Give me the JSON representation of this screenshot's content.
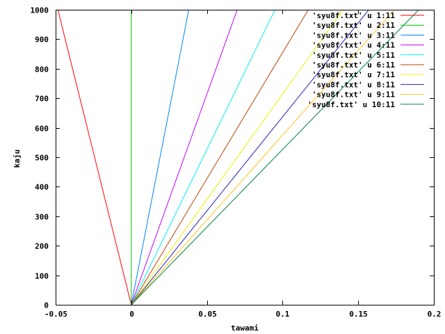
{
  "chart_data": {
    "type": "line",
    "title": "",
    "xlabel": "tawami",
    "ylabel": "kaju",
    "xlim": [
      -0.05,
      0.2
    ],
    "ylim": [
      0,
      1000
    ],
    "xticks": [
      -0.05,
      0,
      0.05,
      0.1,
      0.15,
      0.2
    ],
    "xtick_labels": [
      "-0.05",
      "0",
      "0.05",
      "0.1",
      "0.15",
      "0.2"
    ],
    "yticks": [
      0,
      100,
      200,
      300,
      400,
      500,
      600,
      700,
      800,
      900,
      1000
    ],
    "ytick_labels": [
      "0",
      "100",
      "200",
      "300",
      "400",
      "500",
      "600",
      "700",
      "800",
      "900",
      "1000"
    ],
    "grid": false,
    "legend_position": "top-right",
    "series": [
      {
        "name": "'syu8f.txt' u 1:11",
        "color": "#ff0000",
        "x": [
          0,
          -0.0485
        ],
        "y": [
          0,
          1000
        ]
      },
      {
        "name": "'syu8f.txt' u 2:11",
        "color": "#00c000",
        "x": [
          0,
          0
        ],
        "y": [
          0,
          1000
        ]
      },
      {
        "name": "'syu8f.txt' u 3:11",
        "color": "#0080ff",
        "x": [
          0,
          0.038
        ],
        "y": [
          0,
          1000
        ]
      },
      {
        "name": "'syu8f.txt' u 4:11",
        "color": "#c000ff",
        "x": [
          0,
          0.07
        ],
        "y": [
          0,
          1000
        ]
      },
      {
        "name": "'syu8f.txt' u 5:11",
        "color": "#00eeee",
        "x": [
          0,
          0.095
        ],
        "y": [
          0,
          1000
        ]
      },
      {
        "name": "'syu8f.txt' u 6:11",
        "color": "#c04000",
        "x": [
          0,
          0.117
        ],
        "y": [
          0,
          1000
        ]
      },
      {
        "name": "'syu8f.txt' u 7:11",
        "color": "#eeee00",
        "x": [
          0,
          0.14
        ],
        "y": [
          0,
          1000
        ]
      },
      {
        "name": "'syu8f.txt' u 8:11",
        "color": "#2020c0",
        "x": [
          0,
          0.157
        ],
        "y": [
          0,
          1000
        ]
      },
      {
        "name": "'syu8f.txt' u 9:11",
        "color": "#ffc020",
        "x": [
          0,
          0.174
        ],
        "y": [
          0,
          1000
        ]
      },
      {
        "name": "'syu8f.txt' u 10:11",
        "color": "#008040",
        "x": [
          0,
          0.19
        ],
        "y": [
          0,
          1000
        ]
      }
    ]
  }
}
